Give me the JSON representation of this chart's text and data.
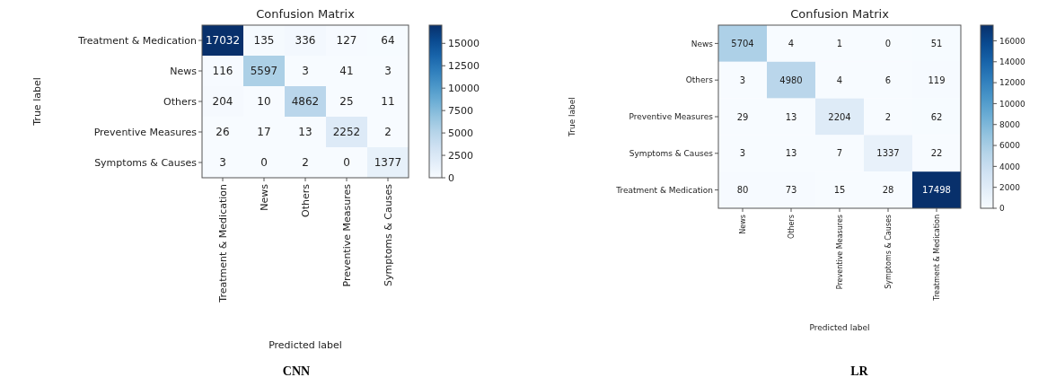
{
  "chart_data": [
    {
      "type": "heatmap",
      "title": "Confusion Matrix",
      "xlabel": "Predicted label",
      "ylabel": "True label",
      "categories": [
        "Treatment & Medication",
        "News",
        "Others",
        "Preventive Measures",
        "Symptoms & Causes"
      ],
      "y_categories": [
        "Treatment & Medication",
        "News",
        "Others",
        "Preventive Measures",
        "Symptoms & Causes"
      ],
      "cells": [
        [
          17032,
          135,
          336,
          127,
          64
        ],
        [
          116,
          5597,
          3,
          41,
          3
        ],
        [
          204,
          10,
          4862,
          25,
          11
        ],
        [
          26,
          17,
          13,
          2252,
          2
        ],
        [
          3,
          0,
          2,
          0,
          1377
        ]
      ],
      "clim": [
        0,
        17032
      ],
      "cticks": [
        0,
        2500,
        5000,
        7500,
        10000,
        12500,
        15000
      ],
      "data_labels": true,
      "annotations": [
        "CNN"
      ]
    },
    {
      "type": "heatmap",
      "title": "Confusion Matrix",
      "xlabel": "Predicted label",
      "ylabel": "True label",
      "categories": [
        "News",
        "Others",
        "Preventive Measures",
        "Symptoms & Causes",
        "Treatment & Medication"
      ],
      "y_categories": [
        "News",
        "Others",
        "Preventive Measures",
        "Symptoms & Causes",
        "Treatment & Medication"
      ],
      "cells": [
        [
          5704,
          4,
          1,
          0,
          51
        ],
        [
          3,
          4980,
          4,
          6,
          119
        ],
        [
          29,
          13,
          2204,
          2,
          62
        ],
        [
          3,
          13,
          7,
          1337,
          22
        ],
        [
          80,
          73,
          15,
          28,
          17498
        ]
      ],
      "clim": [
        0,
        17498
      ],
      "cticks": [
        0,
        2000,
        4000,
        6000,
        8000,
        10000,
        12000,
        14000,
        16000
      ],
      "data_labels": true,
      "annotations": [
        "LR"
      ]
    }
  ]
}
